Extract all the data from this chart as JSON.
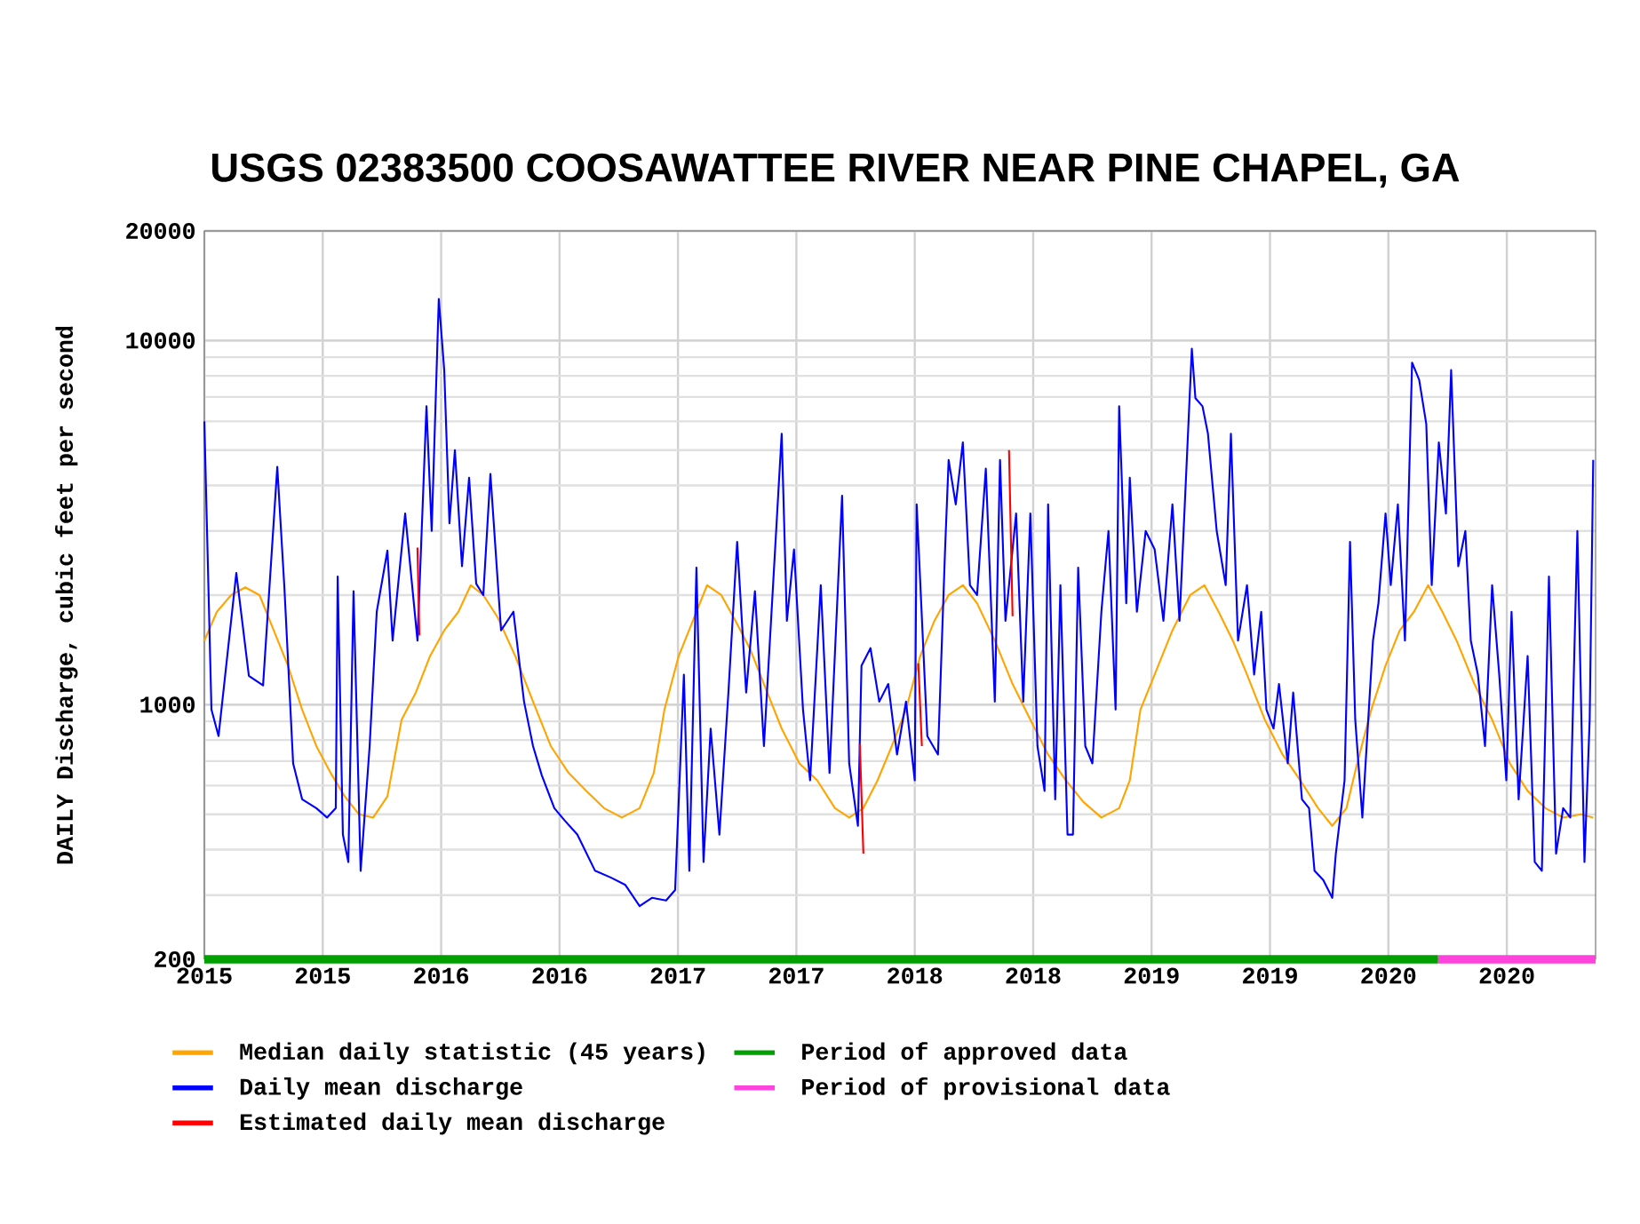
{
  "chart_data": {
    "type": "line",
    "title": "USGS 02383500 COOSAWATTEE RIVER NEAR PINE CHAPEL, GA",
    "ylabel": "DAILY Discharge, cubic feet per second",
    "log": "y",
    "grid": true,
    "legend": "bottom",
    "xlim": [
      2015,
      2020.875
    ],
    "ylim": [
      200,
      20000
    ],
    "yticks": [
      200,
      1000,
      10000,
      20000
    ],
    "xticks": [
      2015,
      {
        "value": 2015.5,
        "label": "2015"
      },
      2016,
      {
        "value": 2016.5,
        "label": "2016"
      },
      2017,
      {
        "value": 2017.5,
        "label": "2017"
      },
      2018,
      {
        "value": 2018.5,
        "label": "2018"
      },
      2019,
      {
        "value": 2019.5,
        "label": "2019"
      },
      2020,
      {
        "value": 2020.5,
        "label": "2020"
      }
    ],
    "series": [
      {
        "name": "Median daily statistic (45 years)",
        "color": "#ffa500",
        "x": [
          2015.0,
          2015.053,
          2015.113,
          2015.173,
          2015.233,
          2015.293,
          2015.353,
          2015.413,
          2015.473,
          2015.533,
          2015.593,
          2015.653,
          2015.713,
          2015.773,
          2015.833,
          2015.893,
          2015.953,
          2016.013,
          2016.073,
          2016.125,
          2016.178,
          2016.238,
          2016.313,
          2016.388,
          2016.463,
          2016.538,
          2016.613,
          2016.688,
          2016.763,
          2016.838,
          2016.898,
          2016.943,
          2017.003,
          2017.063,
          2017.123,
          2017.183,
          2017.243,
          2017.303,
          2017.363,
          2017.438,
          2017.513,
          2017.588,
          2017.663,
          2017.723,
          2017.783,
          2017.843,
          2017.903,
          2017.963,
          2018.023,
          2018.083,
          2018.143,
          2018.203,
          2018.263,
          2018.338,
          2018.413,
          2018.488,
          2018.563,
          2018.638,
          2018.713,
          2018.788,
          2018.863,
          2018.908,
          2018.953,
          2019.013,
          2019.088,
          2019.163,
          2019.223,
          2019.283,
          2019.343,
          2019.403,
          2019.478,
          2019.553,
          2019.628,
          2019.703,
          2019.763,
          2019.823,
          2019.868,
          2019.928,
          2019.988,
          2020.048,
          2020.108,
          2020.168,
          2020.228,
          2020.288,
          2020.363,
          2020.438,
          2020.513,
          2020.588,
          2020.663,
          2020.738,
          2020.813,
          2020.865
        ],
        "values": [
          1500,
          1800,
          2000,
          2100,
          2000,
          1600,
          1280,
          970,
          770,
          650,
          560,
          500,
          490,
          560,
          910,
          1080,
          1360,
          1600,
          1800,
          2130,
          2000,
          1740,
          1360,
          1020,
          770,
          650,
          580,
          520,
          490,
          520,
          650,
          970,
          1360,
          1700,
          2130,
          2000,
          1700,
          1430,
          1140,
          860,
          690,
          620,
          520,
          490,
          520,
          620,
          770,
          970,
          1360,
          1700,
          2000,
          2130,
          1900,
          1500,
          1140,
          910,
          730,
          620,
          540,
          490,
          520,
          620,
          970,
          1210,
          1600,
          2000,
          2130,
          1800,
          1500,
          1210,
          910,
          730,
          620,
          520,
          465,
          520,
          690,
          970,
          1280,
          1600,
          1800,
          2130,
          1800,
          1500,
          1140,
          910,
          690,
          580,
          520,
          490,
          500,
          490
        ]
      },
      {
        "name": "Daily mean discharge",
        "color": "#0000ff",
        "x": [
          2015.0,
          2015.03,
          2015.06,
          2015.135,
          2015.188,
          2015.248,
          2015.308,
          2015.338,
          2015.375,
          2015.413,
          2015.473,
          2015.518,
          2015.555,
          2015.563,
          2015.585,
          2015.608,
          2015.63,
          2015.66,
          2015.698,
          2015.728,
          2015.773,
          2015.795,
          2015.848,
          2015.9,
          2015.938,
          2015.96,
          2015.99,
          2016.013,
          2016.035,
          2016.058,
          2016.088,
          2016.118,
          2016.148,
          2016.178,
          2016.208,
          2016.253,
          2016.305,
          2016.35,
          2016.388,
          2016.425,
          2016.478,
          2016.523,
          2016.575,
          2016.65,
          2016.718,
          2016.778,
          2016.838,
          2016.89,
          2016.95,
          2016.988,
          2017.025,
          2017.048,
          2017.078,
          2017.108,
          2017.138,
          2017.175,
          2017.213,
          2017.25,
          2017.288,
          2017.325,
          2017.363,
          2017.438,
          2017.46,
          2017.49,
          2017.528,
          2017.558,
          2017.603,
          2017.64,
          2017.693,
          2017.723,
          2017.76,
          2017.775,
          2017.813,
          2017.85,
          2017.888,
          2017.925,
          2017.963,
          2018.0,
          2018.008,
          2018.053,
          2018.098,
          2018.128,
          2018.143,
          2018.173,
          2018.203,
          2018.233,
          2018.263,
          2018.3,
          2018.338,
          2018.36,
          2018.383,
          2018.428,
          2018.458,
          2018.488,
          2018.518,
          2018.548,
          2018.563,
          2018.593,
          2018.615,
          2018.645,
          2018.668,
          2018.69,
          2018.72,
          2018.75,
          2018.788,
          2018.818,
          2018.848,
          2018.863,
          2018.893,
          2018.908,
          2018.938,
          2018.975,
          2019.013,
          2019.05,
          2019.088,
          2019.118,
          2019.17,
          2019.185,
          2019.215,
          2019.238,
          2019.275,
          2019.313,
          2019.335,
          2019.365,
          2019.403,
          2019.433,
          2019.463,
          2019.485,
          2019.515,
          2019.538,
          2019.575,
          2019.598,
          2019.635,
          2019.665,
          2019.688,
          2019.725,
          2019.763,
          2019.778,
          2019.815,
          2019.838,
          2019.86,
          2019.89,
          2019.935,
          2019.958,
          2019.988,
          2020.01,
          2020.04,
          2020.07,
          2020.1,
          2020.13,
          2020.16,
          2020.183,
          2020.213,
          2020.243,
          2020.265,
          2020.295,
          2020.325,
          2020.348,
          2020.378,
          2020.408,
          2020.438,
          2020.468,
          2020.498,
          2020.52,
          2020.55,
          2020.588,
          2020.618,
          2020.648,
          2020.678,
          2020.708,
          2020.738,
          2020.768,
          2020.798,
          2020.828,
          2020.85,
          2020.865
        ],
        "values": [
          6000,
          970,
          820,
          2300,
          1200,
          1130,
          4500,
          2100,
          690,
          550,
          520,
          490,
          520,
          2250,
          440,
          370,
          2050,
          350,
          770,
          1800,
          2650,
          1500,
          3350,
          1500,
          6600,
          3000,
          13000,
          8300,
          3150,
          5000,
          2400,
          4200,
          2150,
          2000,
          4300,
          1600,
          1800,
          1020,
          770,
          640,
          520,
          480,
          440,
          350,
          335,
          320,
          280,
          295,
          290,
          310,
          1210,
          350,
          2380,
          370,
          860,
          440,
          1080,
          2800,
          1080,
          2050,
          770,
          5550,
          1700,
          2670,
          970,
          620,
          2130,
          650,
          3750,
          690,
          465,
          1280,
          1430,
          1020,
          1140,
          730,
          1020,
          620,
          3550,
          820,
          730,
          2670,
          4700,
          3550,
          5250,
          2130,
          2000,
          4450,
          1020,
          4700,
          1700,
          3350,
          1020,
          3350,
          770,
          580,
          3550,
          550,
          2130,
          440,
          440,
          2380,
          770,
          690,
          1800,
          3000,
          970,
          6600,
          1900,
          4200,
          1800,
          3000,
          2670,
          1700,
          3550,
          1700,
          9500,
          6950,
          6600,
          5550,
          3000,
          2130,
          5550,
          1500,
          2130,
          1210,
          1800,
          970,
          860,
          1140,
          690,
          1080,
          550,
          520,
          350,
          330,
          295,
          390,
          620,
          2800,
          910,
          490,
          1500,
          1900,
          3350,
          2130,
          3550,
          1500,
          8700,
          7800,
          5900,
          2130,
          5250,
          3350,
          8300,
          2400,
          3000,
          1500,
          1210,
          770,
          2130,
          1210,
          620,
          1800,
          550,
          1360,
          370,
          350,
          2250,
          390,
          520,
          490,
          3000,
          370,
          910,
          4700
        ]
      },
      {
        "name": "Estimated daily mean discharge",
        "color": "#ff0000",
        "x": [
          2015.9,
          2015.908,
          2016.2,
          2017.768,
          2017.783,
          2018.0,
          2018.015,
          2018.03,
          2018.2,
          2018.398,
          2018.413
        ],
        "values": [
          2700,
          1550,
          null,
          780,
          390,
          null,
          1300,
          770,
          null,
          5000,
          1750
        ]
      },
      {
        "name": "Period of approved data",
        "color": "#00a000",
        "x": [
          2015,
          2020.21
        ],
        "values": [
          200,
          200
        ]
      },
      {
        "name": "Period of provisional data",
        "color": "#ff44dd",
        "x": [
          2020.21,
          2020.875
        ],
        "values": [
          200,
          200
        ]
      }
    ]
  }
}
